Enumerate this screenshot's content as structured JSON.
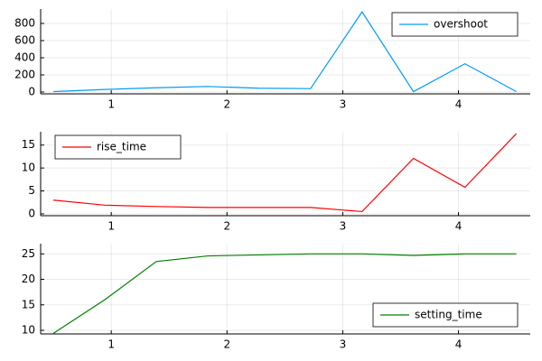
{
  "chart_data": [
    {
      "type": "line",
      "x": [
        0.5,
        0.944,
        1.389,
        1.833,
        2.278,
        2.722,
        3.167,
        3.611,
        4.056,
        4.5
      ],
      "series": [
        {
          "name": "overshoot",
          "color": "#009af9",
          "values": [
            5,
            30,
            50,
            65,
            45,
            40,
            935,
            5,
            330,
            5
          ]
        }
      ],
      "xlim": [
        0.39,
        4.62
      ],
      "xticks": [
        1,
        2,
        3,
        4
      ],
      "ylim": [
        -21,
        968
      ],
      "yticks": [
        0,
        200,
        400,
        600,
        800
      ],
      "grid": true,
      "legend": "top-right"
    },
    {
      "type": "line",
      "x": [
        0.5,
        0.944,
        1.389,
        1.833,
        2.278,
        2.722,
        3.167,
        3.611,
        4.056,
        4.5
      ],
      "series": [
        {
          "name": "rise_time",
          "color": "#ff0000",
          "values": [
            3.0,
            1.9,
            1.6,
            1.4,
            1.4,
            1.4,
            0.5,
            12.1,
            5.8,
            17.5
          ]
        }
      ],
      "xlim": [
        0.39,
        4.62
      ],
      "xticks": [
        1,
        2,
        3,
        4
      ],
      "ylim": [
        -0.4,
        17.9
      ],
      "yticks": [
        0,
        5,
        10,
        15
      ],
      "grid": true,
      "legend": "top-left"
    },
    {
      "type": "line",
      "x": [
        0.5,
        0.944,
        1.389,
        1.833,
        2.278,
        2.722,
        3.167,
        3.611,
        4.056,
        4.5
      ],
      "series": [
        {
          "name": "setting_time",
          "color": "#008000",
          "values": [
            9.4,
            16,
            23.5,
            24.6,
            24.8,
            25,
            25,
            24.7,
            25,
            25
          ]
        }
      ],
      "xlim": [
        0.39,
        4.62
      ],
      "xticks": [
        1,
        2,
        3,
        4
      ],
      "ylim": [
        9.3,
        27
      ],
      "yticks": [
        10,
        15,
        20,
        25
      ],
      "grid": true,
      "legend": "bottom-right"
    }
  ]
}
